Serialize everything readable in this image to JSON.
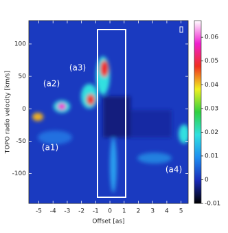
{
  "chart_data": {
    "type": "heatmap",
    "x_label": "Offset [as]",
    "y_label": "TOPO radio velocity [km/s]",
    "xlim": [
      -5.7,
      5.5
    ],
    "xticks": [
      -5,
      -4,
      -3,
      -2,
      -1,
      0,
      1,
      2,
      3,
      4,
      5
    ],
    "ylim": [
      -146,
      136
    ],
    "yticks": [
      -100,
      -50,
      0,
      50,
      100
    ],
    "clim": [
      -0.01,
      0.067
    ],
    "cticks": [
      -0.01,
      0,
      0.01,
      0.02,
      0.03,
      0.04,
      0.05,
      0.06
    ],
    "colormap": [
      "#000000",
      "#1a2bb8",
      "#1e8cf0",
      "#30e0e0",
      "#30d040",
      "#f0f020",
      "#f03020",
      "#f020d0",
      "#ffffff"
    ],
    "annotations": [
      "(a1)",
      "(a2)",
      "(a3)",
      "(a4)"
    ]
  }
}
